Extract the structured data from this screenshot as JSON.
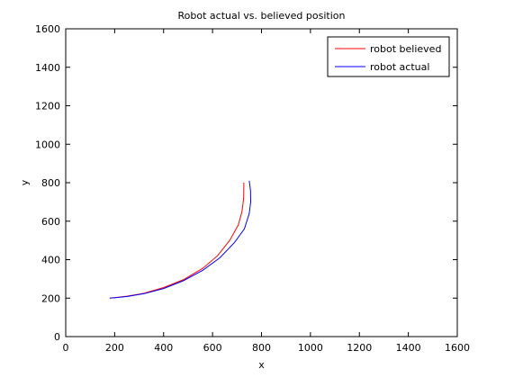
{
  "chart_data": {
    "type": "line",
    "title": "Robot actual vs. believed position",
    "xlabel": "x",
    "ylabel": "y",
    "xlim": [
      0,
      1600
    ],
    "ylim": [
      0,
      1600
    ],
    "xticks": [
      0,
      200,
      400,
      600,
      800,
      1000,
      1200,
      1400,
      1600
    ],
    "yticks": [
      0,
      200,
      400,
      600,
      800,
      1000,
      1200,
      1400,
      1600
    ],
    "grid": false,
    "legend_position": "top-right",
    "series": [
      {
        "name": "robot believed",
        "color": "#ff0000",
        "x": [
          180,
          250,
          320,
          400,
          480,
          560,
          620,
          670,
          705,
          720,
          727,
          728
        ],
        "y": [
          200,
          210,
          225,
          255,
          295,
          355,
          420,
          500,
          580,
          650,
          720,
          800
        ]
      },
      {
        "name": "robot actual",
        "color": "#0000ff",
        "x": [
          180,
          250,
          320,
          400,
          480,
          560,
          630,
          690,
          730,
          750,
          756,
          755,
          750
        ],
        "y": [
          200,
          208,
          223,
          250,
          290,
          345,
          410,
          490,
          560,
          640,
          700,
          760,
          810
        ]
      }
    ]
  }
}
